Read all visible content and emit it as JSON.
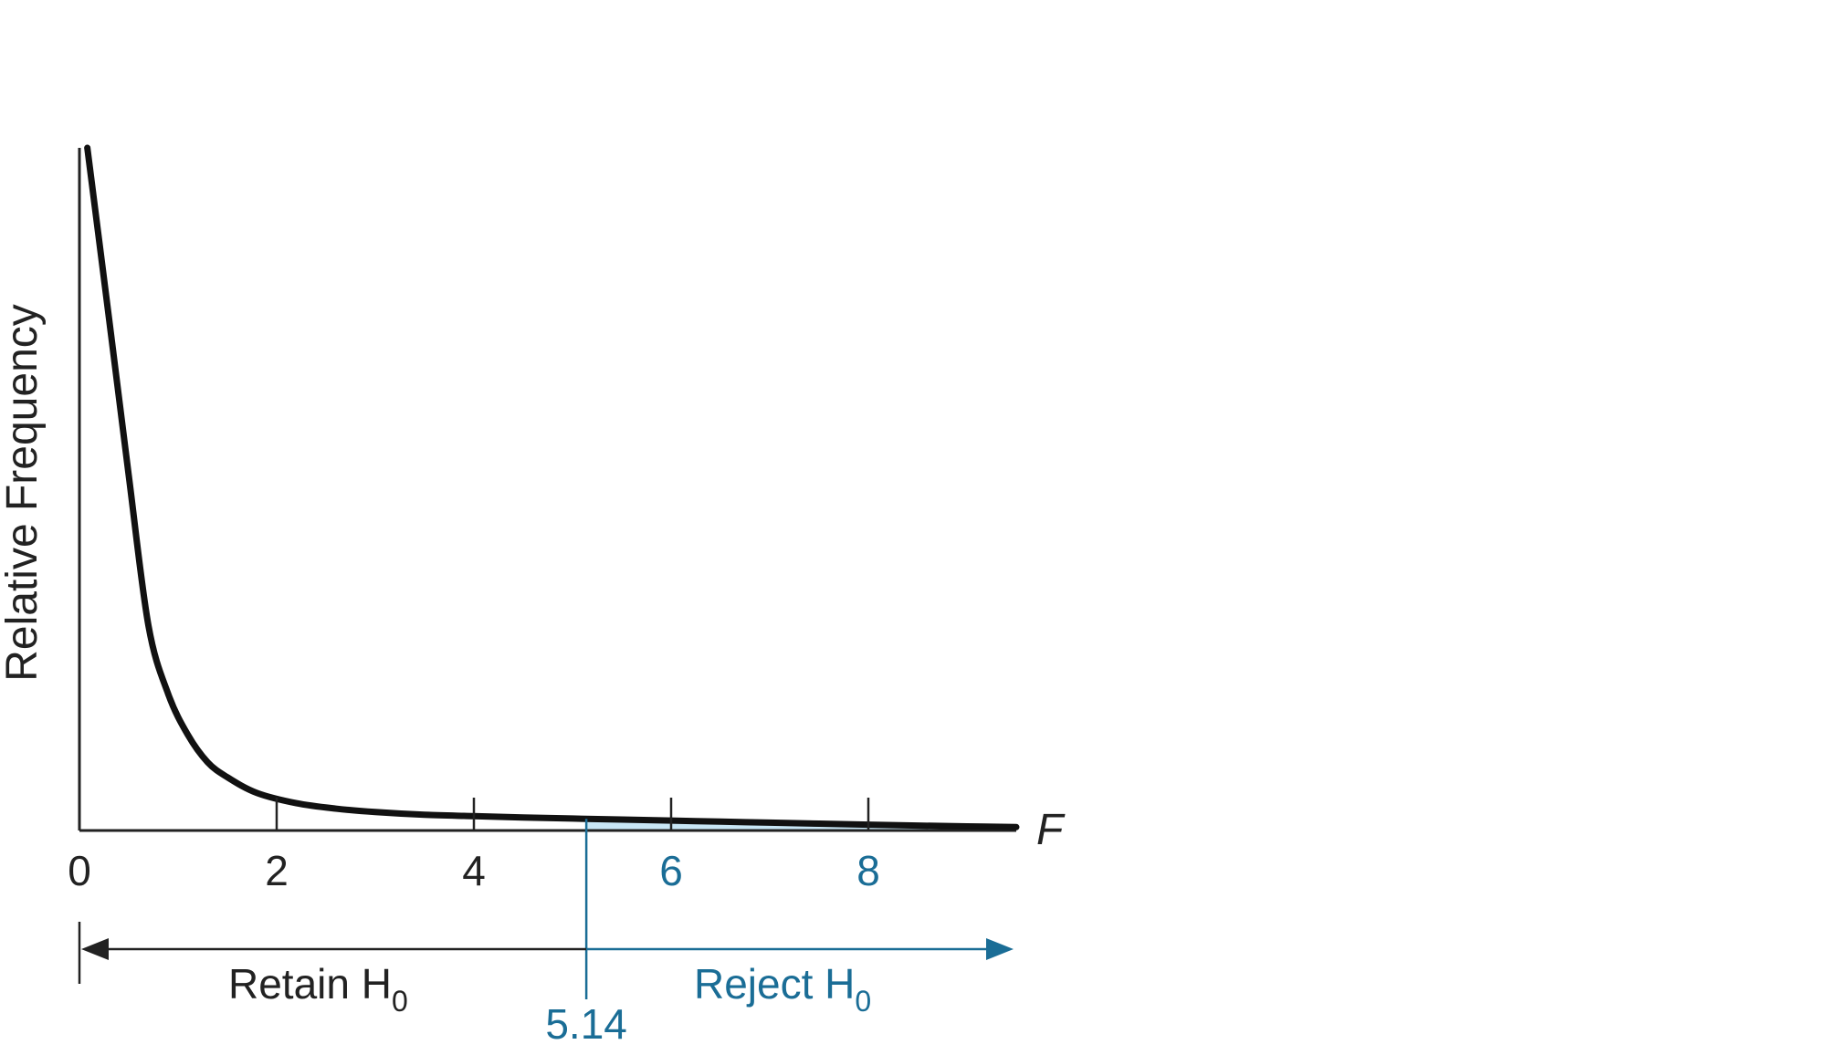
{
  "chart_data": {
    "type": "line",
    "title": "",
    "xlabel": "F",
    "ylabel": "Relative Frequency",
    "xlim": [
      0,
      9.5
    ],
    "x_ticks": [
      "0",
      "2",
      "4",
      "6",
      "8"
    ],
    "x_tick_values": [
      0,
      2,
      4,
      6,
      8
    ],
    "highlight_tick_values": [
      6,
      8
    ],
    "grid": false,
    "legend": "none",
    "series": [
      {
        "x": [
          0.08,
          0.3,
          0.5,
          0.7,
          0.9,
          1.1,
          1.3,
          1.5,
          1.8,
          2.2,
          2.6,
          3.0,
          3.5,
          4.0,
          4.5,
          5.0,
          5.5,
          6.0,
          6.5,
          7.0,
          7.5,
          8.0,
          8.5,
          9.0,
          9.5
        ],
        "y": [
          1.0,
          0.75,
          0.52,
          0.3,
          0.2,
          0.14,
          0.1,
          0.078,
          0.055,
          0.04,
          0.032,
          0.027,
          0.023,
          0.021,
          0.019,
          0.0175,
          0.016,
          0.0145,
          0.013,
          0.0115,
          0.01,
          0.0085,
          0.0072,
          0.006,
          0.005
        ]
      }
    ],
    "critical_value": 5.14,
    "critical_label": "5.14",
    "shaded_region_start": 5.14,
    "regions": {
      "retain": {
        "label": "Retain H",
        "subscript": "0"
      },
      "reject": {
        "label": "Reject H",
        "subscript": "0"
      }
    },
    "colors": {
      "curve": "#111111",
      "axis": "#222222",
      "accent": "#1a6d96",
      "shade": "#c8e6f5",
      "text": "#222222"
    }
  }
}
